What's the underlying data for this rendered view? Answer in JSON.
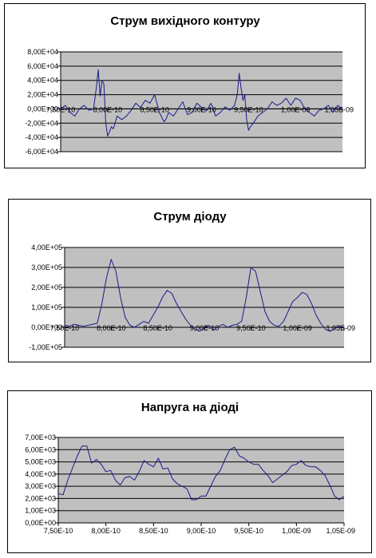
{
  "chart_data": [
    {
      "type": "line",
      "title": "Струм вихідного контуру",
      "xlabel": "",
      "ylabel": "",
      "xlim": [
        7.5e-10,
        1.05e-09
      ],
      "ylim": [
        -60000,
        80000
      ],
      "grid": true,
      "legend": "none",
      "y_ticks": [
        "-6,00E+04",
        "-4,00E+04",
        "-2,00E+04",
        "0,00E+00",
        "2,00E+04",
        "4,00E+04",
        "6,00E+04",
        "8,00E+04"
      ],
      "y_tick_values": [
        -60000,
        -40000,
        -20000,
        0,
        20000,
        40000,
        60000,
        80000
      ],
      "x_ticks": [
        "7,50E-10",
        "8,00E-10",
        "8,50E-10",
        "9,00E-10",
        "9,50E-10",
        "1,00E-09",
        "1,05E-09"
      ],
      "x_tick_values": [
        7.5e-10,
        8e-10,
        8.5e-10,
        9e-10,
        9.5e-10,
        1e-09,
        1.05e-09
      ],
      "x_axis_at": 0,
      "colors": {
        "line": "#1a1a8c",
        "plot_bg": "#c0c0c0",
        "grid": "#000000"
      },
      "x": [
        7.5e-10,
        7.55e-10,
        7.6e-10,
        7.65e-10,
        7.7e-10,
        7.75e-10,
        7.8e-10,
        7.85e-10,
        7.88e-10,
        7.9e-10,
        7.92e-10,
        7.94e-10,
        7.96e-10,
        7.98e-10,
        8e-10,
        8.02e-10,
        8.04e-10,
        8.06e-10,
        8.08e-10,
        8.1e-10,
        8.15e-10,
        8.2e-10,
        8.25e-10,
        8.3e-10,
        8.35e-10,
        8.4e-10,
        8.45e-10,
        8.5e-10,
        8.55e-10,
        8.6e-10,
        8.62e-10,
        8.65e-10,
        8.7e-10,
        8.75e-10,
        8.8e-10,
        8.85e-10,
        8.9e-10,
        8.95e-10,
        9e-10,
        9.05e-10,
        9.1e-10,
        9.15e-10,
        9.2e-10,
        9.25e-10,
        9.3e-10,
        9.35e-10,
        9.38e-10,
        9.4e-10,
        9.42e-10,
        9.44e-10,
        9.46e-10,
        9.48e-10,
        9.5e-10,
        9.52e-10,
        9.55e-10,
        9.6e-10,
        9.65e-10,
        9.7e-10,
        9.75e-10,
        9.8e-10,
        9.85e-10,
        9.9e-10,
        9.95e-10,
        1e-09,
        1.005e-09,
        1.01e-09,
        1.015e-09,
        1.02e-09,
        1.025e-09,
        1.03e-09,
        1.035e-09,
        1.04e-09,
        1.045e-09,
        1.05e-09
      ],
      "values": [
        0,
        5000,
        -5000,
        -10000,
        0,
        5000,
        -2000,
        0,
        30000,
        55000,
        18000,
        40000,
        35000,
        -20000,
        -38000,
        -32000,
        -25000,
        -28000,
        -20000,
        -10000,
        -15000,
        -10000,
        -2000,
        8000,
        2000,
        12000,
        8000,
        20000,
        -5000,
        -18000,
        -15000,
        -5000,
        -10000,
        0,
        10000,
        -8000,
        -5000,
        8000,
        2000,
        -3000,
        8000,
        -10000,
        -5000,
        3000,
        -2000,
        5000,
        20000,
        50000,
        30000,
        12000,
        20000,
        -15000,
        -30000,
        -25000,
        -20000,
        -10000,
        -5000,
        0,
        10000,
        5000,
        8000,
        15000,
        5000,
        15000,
        12000,
        0,
        -5000,
        -10000,
        -2000,
        0,
        5000,
        -5000,
        5000,
        0
      ]
    },
    {
      "type": "line",
      "title": "Струм діоду",
      "xlabel": "",
      "ylabel": "",
      "xlim": [
        7.5e-10,
        1.05e-09
      ],
      "ylim": [
        -100000,
        400000
      ],
      "grid": true,
      "legend": "none",
      "y_ticks": [
        "-1,00E+05",
        "0,00E+00",
        "1,00E+05",
        "2,00E+05",
        "3,00E+05",
        "4,00E+05"
      ],
      "y_tick_values": [
        -100000,
        0,
        100000,
        200000,
        300000,
        400000
      ],
      "x_ticks": [
        "7,50E-10",
        "8,00E-10",
        "8,50E-10",
        "9,00E-10",
        "9,50E-10",
        "1,00E-09",
        "1,05E-09"
      ],
      "x_tick_values": [
        7.5e-10,
        8e-10,
        8.5e-10,
        9e-10,
        9.5e-10,
        1e-09,
        1.05e-09
      ],
      "x_axis_at": 0,
      "colors": {
        "line": "#1a1a8c",
        "plot_bg": "#c0c0c0",
        "grid": "#000000"
      },
      "x": [
        7.5e-10,
        7.55e-10,
        7.6e-10,
        7.65e-10,
        7.7e-10,
        7.75e-10,
        7.8e-10,
        7.85e-10,
        7.9e-10,
        7.95e-10,
        8e-10,
        8.05e-10,
        8.1e-10,
        8.15e-10,
        8.2e-10,
        8.25e-10,
        8.3e-10,
        8.35e-10,
        8.4e-10,
        8.45e-10,
        8.5e-10,
        8.55e-10,
        8.6e-10,
        8.65e-10,
        8.7e-10,
        8.75e-10,
        8.8e-10,
        8.85e-10,
        8.9e-10,
        8.95e-10,
        9e-10,
        9.05e-10,
        9.1e-10,
        9.15e-10,
        9.2e-10,
        9.25e-10,
        9.3e-10,
        9.35e-10,
        9.4e-10,
        9.45e-10,
        9.5e-10,
        9.55e-10,
        9.6e-10,
        9.65e-10,
        9.7e-10,
        9.75e-10,
        9.8e-10,
        9.85e-10,
        9.9e-10,
        9.95e-10,
        1e-09,
        1.005e-09,
        1.01e-09,
        1.015e-09,
        1.02e-09,
        1.025e-09,
        1.03e-09,
        1.035e-09,
        1.04e-09,
        1.045e-09,
        1.05e-09
      ],
      "values": [
        0,
        5000,
        15000,
        10000,
        5000,
        10000,
        15000,
        20000,
        120000,
        250000,
        340000,
        280000,
        150000,
        50000,
        10000,
        0,
        15000,
        30000,
        20000,
        60000,
        100000,
        150000,
        185000,
        170000,
        120000,
        80000,
        40000,
        10000,
        -10000,
        -20000,
        0,
        10000,
        -15000,
        5000,
        15000,
        0,
        10000,
        15000,
        30000,
        150000,
        300000,
        280000,
        180000,
        80000,
        30000,
        10000,
        5000,
        30000,
        80000,
        130000,
        150000,
        175000,
        165000,
        120000,
        60000,
        20000,
        -10000,
        -20000,
        -5000,
        5000,
        0
      ]
    },
    {
      "type": "line",
      "title": "Напруга на діоді",
      "xlabel": "",
      "ylabel": "",
      "xlim": [
        7.5e-10,
        1.05e-09
      ],
      "ylim": [
        0,
        7000
      ],
      "grid": true,
      "legend": "none",
      "y_ticks": [
        "0,00E+00",
        "1,00E+03",
        "2,00E+03",
        "3,00E+03",
        "4,00E+03",
        "5,00E+03",
        "6,00E+03",
        "7,00E+03"
      ],
      "y_tick_values": [
        0,
        1000,
        2000,
        3000,
        4000,
        5000,
        6000,
        7000
      ],
      "x_ticks": [
        "7,50E-10",
        "8,00E-10",
        "8,50E-10",
        "9,00E-10",
        "9,50E-10",
        "1,00E-09",
        "1,05E-09"
      ],
      "x_tick_values": [
        7.5e-10,
        8e-10,
        8.5e-10,
        9e-10,
        9.5e-10,
        1e-09,
        1.05e-09
      ],
      "x_axis_at": 0,
      "colors": {
        "line": "#1a1a8c",
        "plot_bg": "#c0c0c0",
        "grid": "#000000"
      },
      "x": [
        7.5e-10,
        7.55e-10,
        7.6e-10,
        7.65e-10,
        7.7e-10,
        7.75e-10,
        7.8e-10,
        7.85e-10,
        7.9e-10,
        7.95e-10,
        8e-10,
        8.05e-10,
        8.1e-10,
        8.15e-10,
        8.2e-10,
        8.25e-10,
        8.3e-10,
        8.35e-10,
        8.4e-10,
        8.45e-10,
        8.5e-10,
        8.55e-10,
        8.6e-10,
        8.65e-10,
        8.7e-10,
        8.75e-10,
        8.8e-10,
        8.85e-10,
        8.9e-10,
        8.95e-10,
        9e-10,
        9.05e-10,
        9.1e-10,
        9.15e-10,
        9.2e-10,
        9.25e-10,
        9.3e-10,
        9.35e-10,
        9.4e-10,
        9.45e-10,
        9.5e-10,
        9.55e-10,
        9.6e-10,
        9.65e-10,
        9.7e-10,
        9.75e-10,
        9.8e-10,
        9.85e-10,
        9.9e-10,
        9.95e-10,
        1e-09,
        1.005e-09,
        1.01e-09,
        1.015e-09,
        1.02e-09,
        1.025e-09,
        1.03e-09,
        1.035e-09,
        1.04e-09,
        1.045e-09,
        1.05e-09
      ],
      "values": [
        2400,
        2300,
        3500,
        4500,
        5500,
        6300,
        6300,
        4900,
        5200,
        4800,
        4200,
        4300,
        3500,
        3100,
        3700,
        3800,
        3500,
        4200,
        5100,
        4800,
        4600,
        5300,
        4400,
        4500,
        3600,
        3200,
        3000,
        2800,
        1900,
        1900,
        2200,
        2200,
        3000,
        3800,
        4300,
        5200,
        6000,
        6200,
        5500,
        5300,
        5000,
        4800,
        4800,
        4300,
        3900,
        3300,
        3600,
        3900,
        4200,
        4700,
        4800,
        5100,
        4700,
        4600,
        4600,
        4300,
        3900,
        3100,
        2200,
        1900,
        2200
      ]
    }
  ]
}
